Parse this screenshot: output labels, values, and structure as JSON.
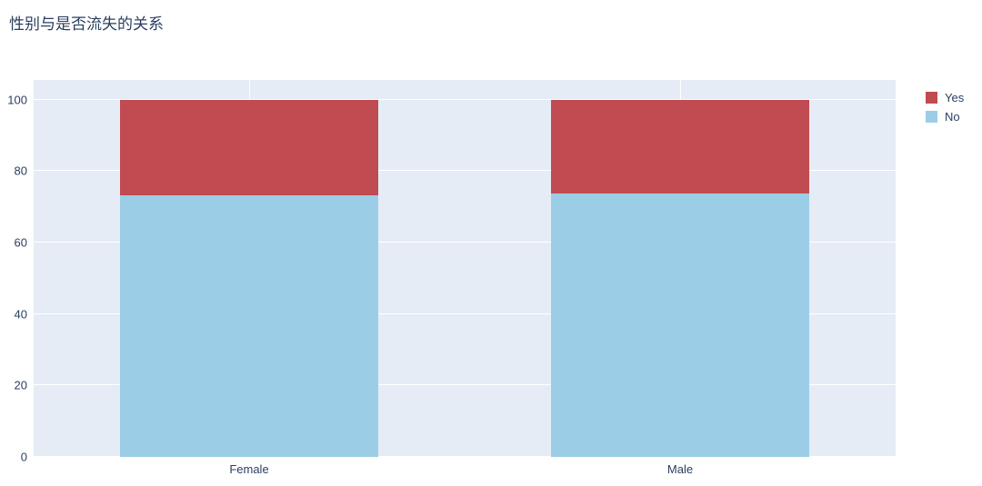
{
  "title": "性别与是否流失的关系",
  "colors": {
    "yes": "#c04b51",
    "no": "#9ccde6",
    "plot_background": "#e5ecf6",
    "gridline": "#ffffff",
    "text": "#2a3f5f"
  },
  "legend": [
    {
      "label": "Yes",
      "color": "#c04b51"
    },
    {
      "label": "No",
      "color": "#9ccde6"
    }
  ],
  "chart_data": {
    "type": "bar",
    "stacked": true,
    "title": "性别与是否流失的关系",
    "xlabel": "",
    "ylabel": "",
    "categories": [
      "Female",
      "Male"
    ],
    "series": [
      {
        "name": "No",
        "color": "#9ccde6",
        "values": [
          73.1,
          73.8
        ]
      },
      {
        "name": "Yes",
        "color": "#c04b51",
        "values": [
          26.9,
          26.2
        ]
      }
    ],
    "yticks": [
      0,
      20,
      40,
      60,
      80,
      100
    ],
    "ylim": [
      0,
      105.5
    ],
    "bar_width_fraction": 0.3,
    "grid": true,
    "legend_position": "top-right"
  }
}
